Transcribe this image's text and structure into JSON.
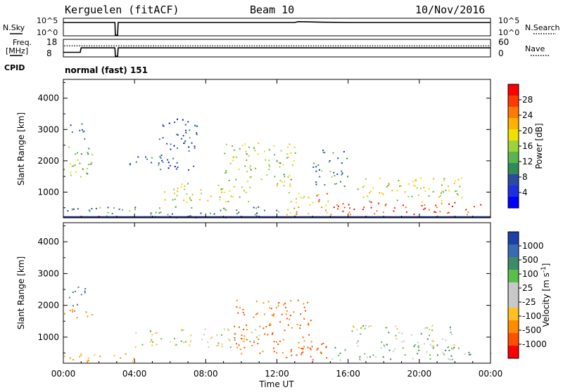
{
  "header": {
    "station": "Kerguelen (fitACF)",
    "beam": "Beam 10",
    "date": "10/Nov/2016"
  },
  "status_panels": {
    "nsky_label": "N.Sky",
    "nsky_ticks": [
      "10^5",
      "10^0"
    ],
    "nsearch_label": "N.Search",
    "nsearch_ticks": [
      "10^5",
      "10^0"
    ],
    "freq_label_1": "Freq.",
    "freq_label_2": "[MHz]",
    "freq_ticks": [
      "18",
      "8"
    ],
    "nave_label": "Nave",
    "nave_ticks": [
      "60",
      "0"
    ],
    "cpid_label": "CPID",
    "cpid_value": "normal (fast) 151"
  },
  "chart_data": [
    {
      "type": "line",
      "name": "nsky-nsearch",
      "x_hours": [
        0.0,
        0.05,
        2.9,
        2.92,
        3.05,
        3.08,
        13.0,
        13.2,
        14.5,
        16.0,
        24.0
      ],
      "nsky_level": [
        0.9,
        0.9,
        0.9,
        0.0,
        0.0,
        0.9,
        0.9,
        0.96,
        0.92,
        0.9,
        0.9
      ],
      "notes": "Nsky approx 10^5 through most of day; gap 02:55-03:05"
    },
    {
      "type": "line",
      "name": "frequency-nave",
      "x_hours": [
        0.0,
        0.05,
        0.95,
        1.0,
        2.9,
        2.92,
        3.05,
        3.08,
        13.0,
        24.0
      ],
      "freq_mhz": [
        10.5,
        10.5,
        10.5,
        13.4,
        13.4,
        8,
        8,
        13.4,
        13.4,
        13.4
      ],
      "nave_dotted": 40,
      "ylim_freq": [
        8,
        18
      ],
      "ylim_nave": [
        0,
        60
      ]
    },
    {
      "type": "heatmap",
      "name": "power",
      "xlabel": "",
      "ylabel": "Slant Range [km]",
      "xlim_hours": [
        0,
        24
      ],
      "ylim_km": [
        180,
        4600
      ],
      "yticks": [
        1000,
        2000,
        3000,
        4000
      ],
      "colorbar_label": "Power [dB]",
      "colorbar_ticks": [
        "28",
        "24",
        "20",
        "16",
        "12",
        "8",
        "4"
      ],
      "colorbar_colors": [
        "#ff0000",
        "#ff3a00",
        "#ff7a00",
        "#ffb000",
        "#f0e000",
        "#9cd23c",
        "#5ab450",
        "#2f8a56",
        "#2c4aa0",
        "#1e2ee0",
        "#0000ff"
      ],
      "regions": [
        {
          "t": [
            0.0,
            1.6
          ],
          "r": [
            1400,
            2600
          ],
          "level": 0.45
        },
        {
          "t": [
            0.3,
            1.2
          ],
          "r": [
            2600,
            3200
          ],
          "level": 0.3
        },
        {
          "t": [
            3.7,
            5.2
          ],
          "r": [
            1800,
            2200
          ],
          "level": 0.25
        },
        {
          "t": [
            5.0,
            10.5
          ],
          "r": [
            700,
            1300
          ],
          "level": 0.55
        },
        {
          "t": [
            5.3,
            7.5
          ],
          "r": [
            1700,
            3500
          ],
          "level": 0.2
        },
        {
          "t": [
            9.0,
            13.0
          ],
          "r": [
            1200,
            2600
          ],
          "level": 0.5
        },
        {
          "t": [
            12.5,
            15.0
          ],
          "r": [
            300,
            1100
          ],
          "level": 0.7
        },
        {
          "t": [
            15.0,
            24.0
          ],
          "r": [
            300,
            700
          ],
          "level": 0.92
        },
        {
          "t": [
            16.5,
            22.5
          ],
          "r": [
            700,
            1500
          ],
          "level": 0.55
        },
        {
          "t": [
            14.0,
            16.0
          ],
          "r": [
            1200,
            2400
          ],
          "level": 0.3
        },
        {
          "t": [
            0.0,
            13.0
          ],
          "r": [
            200,
            550
          ],
          "level": 0.35
        }
      ]
    },
    {
      "type": "heatmap",
      "name": "velocity",
      "xlabel": "Time UT",
      "ylabel": "Slant Range [km]",
      "xlim_hours": [
        0,
        24
      ],
      "ylim_km": [
        180,
        4600
      ],
      "xticks": [
        "00:00",
        "04:00",
        "08:00",
        "12:00",
        "16:00",
        "20:00",
        "00:00"
      ],
      "yticks": [
        1000,
        2000,
        3000,
        4000
      ],
      "colorbar_label": "Velocity [m s^-1]",
      "colorbar_ticks": [
        "1000",
        "500",
        "100",
        "25",
        "-25",
        "-100",
        "-500",
        "-1000"
      ],
      "colorbar_colors": [
        "#1c3fa8",
        "#3a6ab4",
        "#3f8a6a",
        "#58c04a",
        "#c8c8c8",
        "#c8c8c8",
        "#ffc020",
        "#ff8c00",
        "#ff5000",
        "#ff0000"
      ],
      "regions": [
        {
          "t": [
            0.0,
            1.6
          ],
          "r": [
            1500,
            1900
          ],
          "level": -150
        },
        {
          "t": [
            0.2,
            1.4
          ],
          "r": [
            2000,
            2600
          ],
          "level": 300
        },
        {
          "t": [
            4.0,
            11.0
          ],
          "r": [
            700,
            1300
          ],
          "level": 0
        },
        {
          "t": [
            9.5,
            14.0
          ],
          "r": [
            500,
            2200
          ],
          "level": -200
        },
        {
          "t": [
            12.5,
            15.0
          ],
          "r": [
            300,
            900
          ],
          "level": -400
        },
        {
          "t": [
            15.0,
            24.0
          ],
          "r": [
            300,
            700
          ],
          "level": 40
        },
        {
          "t": [
            16.0,
            22.0
          ],
          "r": [
            700,
            1400
          ],
          "level": 10
        },
        {
          "t": [
            0.0,
            4.0
          ],
          "r": [
            200,
            500
          ],
          "level": -80
        }
      ]
    }
  ]
}
